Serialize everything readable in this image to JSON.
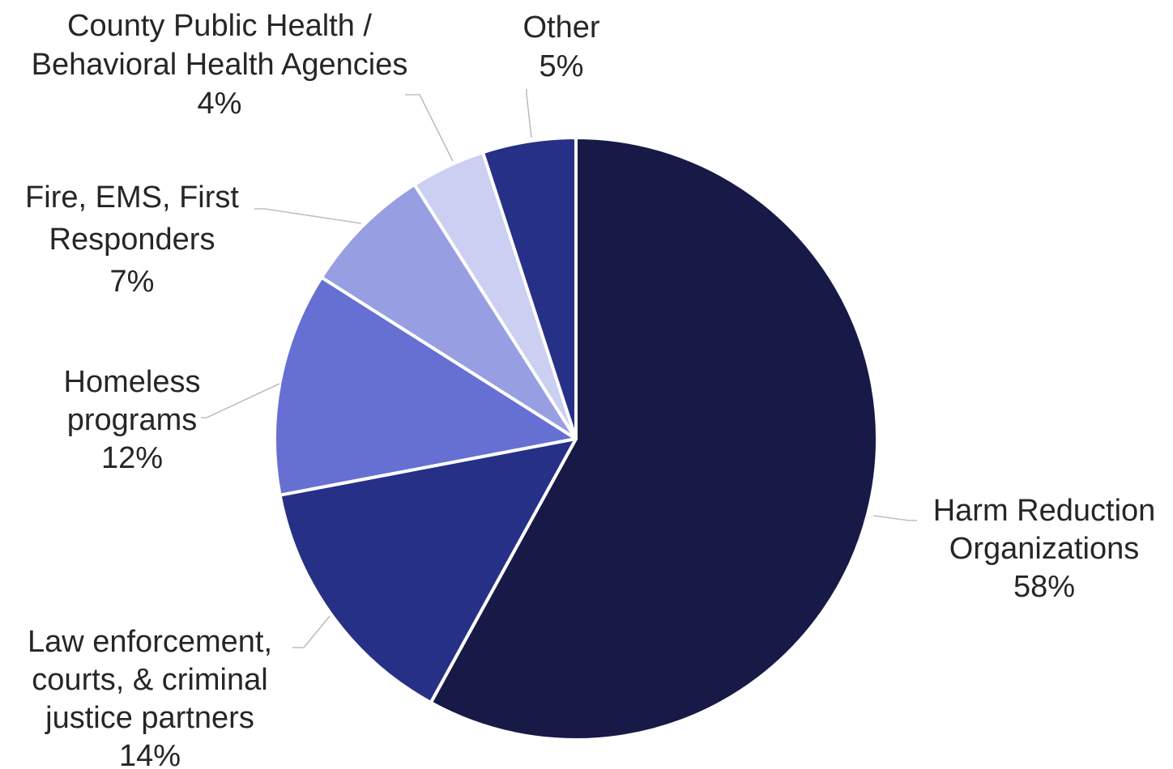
{
  "chart_data": {
    "type": "pie",
    "title": "",
    "slices": [
      {
        "label_lines": [
          "Harm Reduction",
          "Organizations"
        ],
        "value": 58,
        "value_label": "58%",
        "color": "#171a47"
      },
      {
        "label_lines": [
          "Law enforcement,",
          "courts, & criminal",
          "justice partners"
        ],
        "value": 14,
        "value_label": "14%",
        "color": "#273087"
      },
      {
        "label_lines": [
          "Homeless",
          "programs"
        ],
        "value": 12,
        "value_label": "12%",
        "color": "#6670d3"
      },
      {
        "label_lines": [
          "Fire, EMS, First",
          "Responders"
        ],
        "value": 7,
        "value_label": "7%",
        "color": "#979fe2"
      },
      {
        "label_lines": [
          "County Public Health /",
          "Behavioral Health Agencies"
        ],
        "value": 4,
        "value_label": "4%",
        "color": "#cbcff2"
      },
      {
        "label_lines": [
          "Other"
        ],
        "value": 5,
        "value_label": "5%",
        "color": "#273087"
      }
    ],
    "legend": "none",
    "data_labels": "outside with leader lines"
  }
}
